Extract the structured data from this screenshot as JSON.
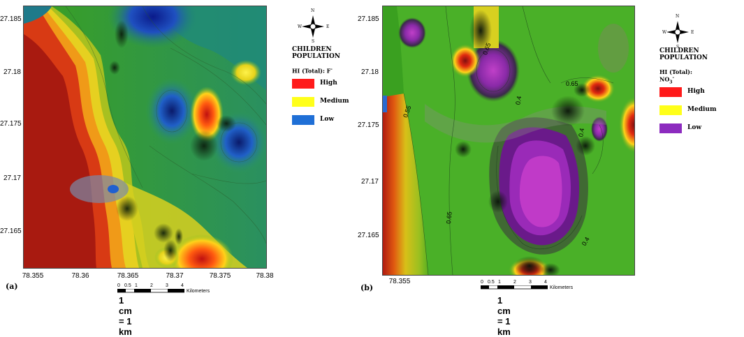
{
  "panels": [
    {
      "id": "a",
      "label": "(a)",
      "y_ticks": [
        "27.185",
        "27.18",
        "27.175",
        "27.17",
        "27.165"
      ],
      "x_ticks": [
        "78.355",
        "78.36",
        "78.365",
        "78.37",
        "78.375",
        "78.38"
      ],
      "scale_bar": {
        "ticks": [
          "0",
          "0.5",
          "1",
          "2",
          "3",
          "4"
        ],
        "unit": "Kilometers",
        "note": "1 cm = 1 km"
      },
      "legend": {
        "compass": {
          "n": "N",
          "s": "S",
          "e": "E",
          "w": "W"
        },
        "title": "CHILDREN POPULATION",
        "hi_label": "HI (Total): F",
        "hi_sup": "-",
        "items": [
          {
            "label": "High",
            "color": "#ff1a1a"
          },
          {
            "label": "Medium",
            "color": "#ffff1a"
          },
          {
            "label": "Low",
            "color": "#1f6fd6"
          }
        ]
      }
    },
    {
      "id": "b",
      "label": "(b)",
      "y_ticks": [
        "27.185",
        "27.18",
        "27.175",
        "27.17",
        "27.165"
      ],
      "x_ticks": [
        "78.355"
      ],
      "contour_labels": [
        "0.65",
        "0.4",
        "0.65",
        "0.4",
        "0.55",
        "0.65",
        "0.4"
      ],
      "scale_bar": {
        "ticks": [
          "0",
          "0.5",
          "1",
          "2",
          "3",
          "4"
        ],
        "unit": "Kilometers",
        "note": "1 cm = 1 km"
      },
      "legend": {
        "compass": {
          "n": "N",
          "s": "S",
          "e": "E",
          "w": "W"
        },
        "title": "CHILDREN POPULATION",
        "hi_label": "HI (Total): NO",
        "hi_sub": "3",
        "hi_sup": "-",
        "items": [
          {
            "label": "High",
            "color": "#ff1a1a"
          },
          {
            "label": "Medium",
            "color": "#ffff1a"
          },
          {
            "label": "Low",
            "color": "#8c2bbf"
          }
        ]
      }
    }
  ]
}
